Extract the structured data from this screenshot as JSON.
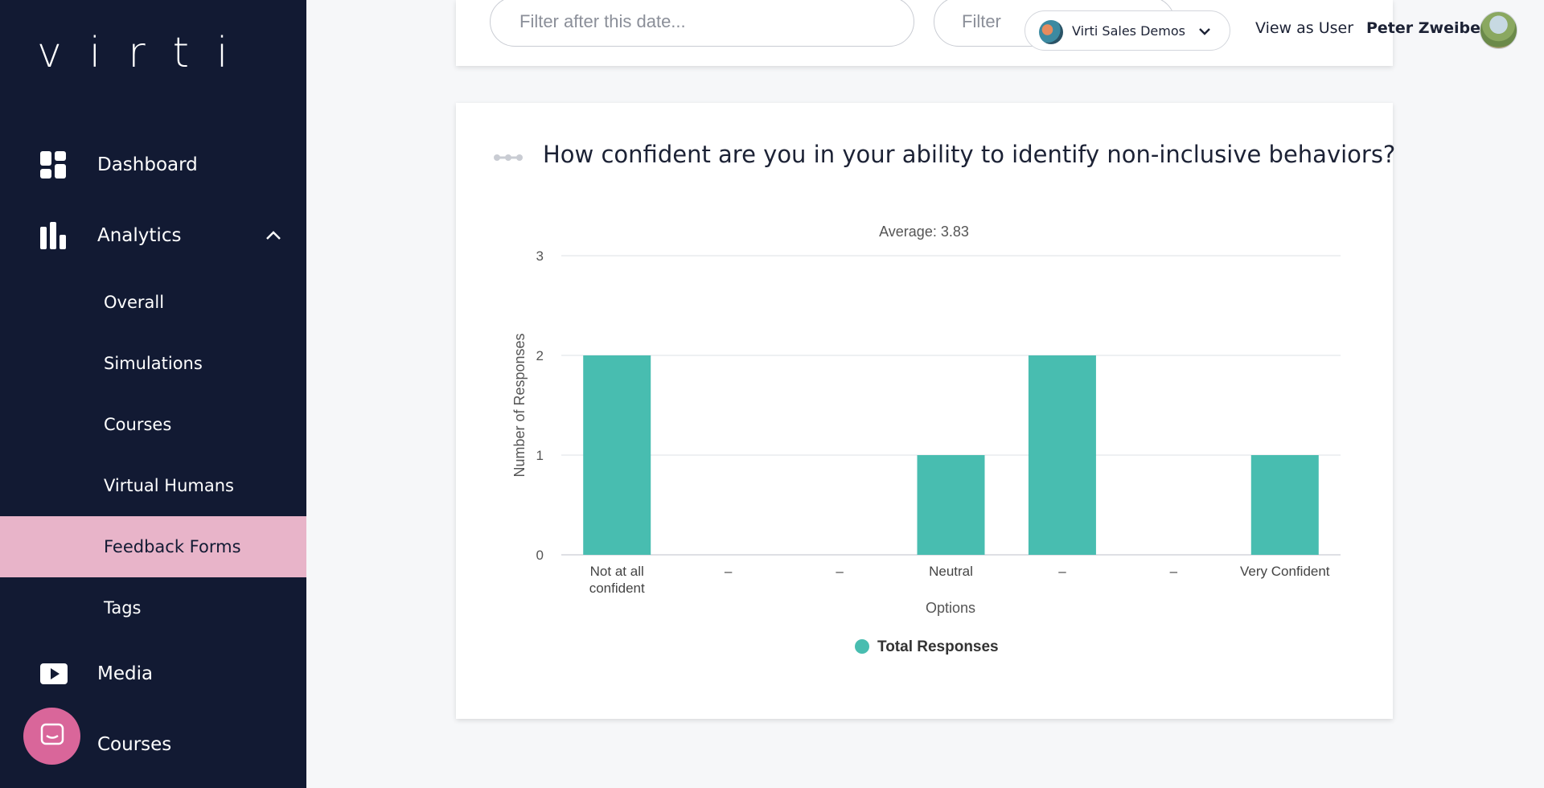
{
  "sidebar": {
    "logo": "virti",
    "main_items": [
      {
        "label": "Dashboard",
        "icon": "dashboard-icon"
      },
      {
        "label": "Analytics",
        "icon": "analytics-icon",
        "expanded": true
      }
    ],
    "sub_items": [
      {
        "label": "Overall"
      },
      {
        "label": "Simulations"
      },
      {
        "label": "Courses"
      },
      {
        "label": "Virtual Humans"
      },
      {
        "label": "Feedback Forms",
        "active": true
      },
      {
        "label": "Tags"
      }
    ],
    "bottom_items": [
      {
        "label": "Media",
        "icon": "media-icon"
      },
      {
        "label": "Courses",
        "icon": "courses-icon"
      }
    ]
  },
  "header": {
    "date_filter_placeholder": "Filter after this date...",
    "date_filter2_placeholder": "Filter",
    "org_selector": {
      "label": "Virti Sales Demos"
    },
    "view_as_user": "View as User",
    "user_name": "Peter Zweibel"
  },
  "card": {
    "question": "How confident are you in your ability to identify non-inclusive behaviors?"
  },
  "colors": {
    "sidebar_bg": "#121a33",
    "active_item_bg": "#e8b4c9",
    "bar": "#48bdb0",
    "chat_bubble": "#d9669a"
  },
  "chart_data": {
    "type": "bar",
    "title": "Average: 3.83",
    "categories": [
      [
        "Not at all",
        "confident"
      ],
      [
        "–"
      ],
      [
        "–"
      ],
      [
        "Neutral"
      ],
      [
        "–"
      ],
      [
        "–"
      ],
      [
        "Very Confident"
      ]
    ],
    "series": [
      {
        "name": "Total Responses",
        "values": [
          2,
          0,
          0,
          1,
          2,
          0,
          1
        ]
      }
    ],
    "xlabel": "Options",
    "ylabel": "Number of Responses",
    "ylim": [
      0,
      3
    ],
    "yticks": [
      0,
      1,
      2,
      3
    ],
    "grid": true,
    "legend": "bottom-center"
  }
}
